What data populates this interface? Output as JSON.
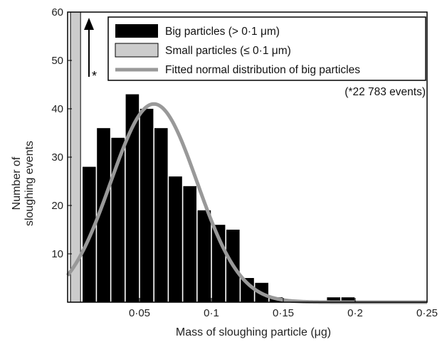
{
  "chart_data": {
    "type": "bar",
    "title": "",
    "xlabel": "Mass of sloughing particle (μg)",
    "ylabel_lines": [
      "Number of",
      "sloughing events"
    ],
    "xlim": [
      0,
      0.25
    ],
    "ylim": [
      0,
      60
    ],
    "x_ticks": [
      0.05,
      0.1,
      0.15,
      0.2,
      0.25
    ],
    "x_tick_labels": [
      "0·05",
      "0·1",
      "0·15",
      "0·2",
      "0·25"
    ],
    "y_ticks": [
      10,
      20,
      30,
      40,
      50,
      60
    ],
    "y_tick_labels": [
      "10",
      "20",
      "30",
      "40",
      "50",
      "60"
    ],
    "bin_width": 0.01,
    "series": [
      {
        "name": "Big particles (> 0·1 μm)",
        "color": "#000000",
        "bin_centers": [
          0.015,
          0.025,
          0.035,
          0.045,
          0.055,
          0.065,
          0.075,
          0.085,
          0.095,
          0.105,
          0.115,
          0.125,
          0.135,
          0.145,
          0.185,
          0.195
        ],
        "values": [
          28,
          36,
          34,
          43,
          40,
          36,
          26,
          24,
          19,
          16,
          15,
          5,
          4,
          1,
          1,
          1
        ]
      },
      {
        "name": "Small particles (≤ 0·1 μm)",
        "color": "#cccccc",
        "bin_range": [
          0.002,
          0.009
        ],
        "value": 22783
      },
      {
        "name": "Fitted normal distribution of big particles",
        "color": "#999999",
        "type": "line",
        "mean": 0.06,
        "sd": 0.03,
        "peak": 41
      }
    ],
    "arrow_label": "*",
    "note": "(*22 783 events)",
    "legend_position": "top-right",
    "grid": false
  }
}
